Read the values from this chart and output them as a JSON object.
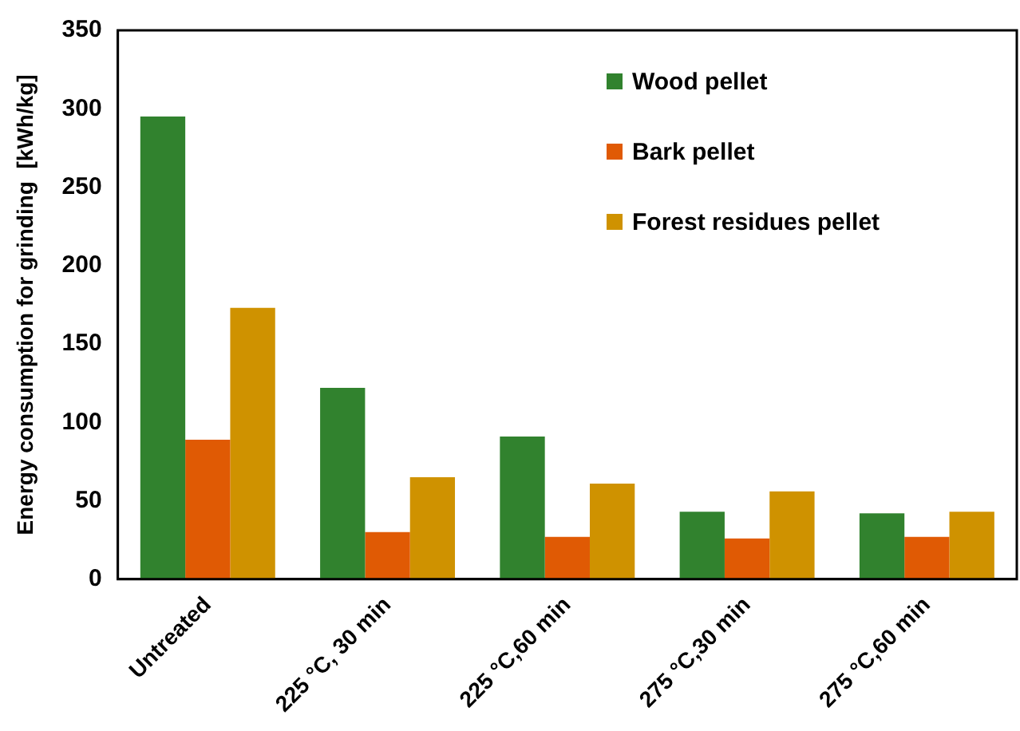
{
  "chart_data": {
    "type": "bar",
    "ylabel": "Energy consumption for grinding  [kWh/kg]",
    "categories": [
      "Untreated",
      "225 °C, 30 min",
      "225 °C,60 min",
      "275 °C,30 min",
      "275 °C,60 min"
    ],
    "series": [
      {
        "name": "Wood pellet",
        "color": "#31822e",
        "values": [
          295,
          122,
          91,
          43,
          42
        ]
      },
      {
        "name": "Bark pellet",
        "color": "#e05a04",
        "values": [
          89,
          30,
          27,
          26,
          27
        ]
      },
      {
        "name": "Forest residues pellet",
        "color": "#cf9200",
        "values": [
          173,
          65,
          61,
          56,
          43
        ]
      }
    ],
    "ylim": [
      0,
      350
    ],
    "yticks": [
      0,
      50,
      100,
      150,
      200,
      250,
      300,
      350
    ],
    "grid": false,
    "legend": "top right"
  }
}
